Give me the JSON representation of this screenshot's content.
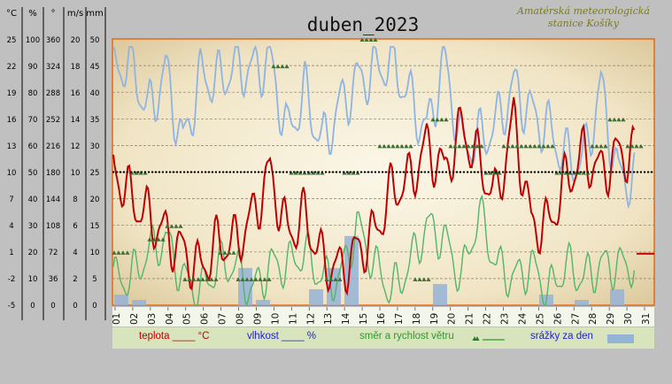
{
  "title": "duben_2023",
  "station": [
    "Amatérská meteorologická",
    "stanice Košíky"
  ],
  "chart_data": {
    "type": "line",
    "title": "duben_2023",
    "axes": [
      {
        "unit": "°C",
        "ticks": [
          "25",
          "22",
          "19",
          "16",
          "13",
          "10",
          "7",
          "4",
          "1",
          "-2",
          "-5"
        ]
      },
      {
        "unit": "%",
        "ticks": [
          "100",
          "90",
          "80",
          "70",
          "60",
          "50",
          "40",
          "30",
          "20",
          "10",
          "0"
        ]
      },
      {
        "unit": "°",
        "ticks": [
          "360",
          "324",
          "288",
          "252",
          "216",
          "180",
          "144",
          "108",
          "72",
          "36",
          "0"
        ]
      },
      {
        "unit": "m/s",
        "ticks": [
          "20",
          "18",
          "16",
          "14",
          "12",
          "10",
          "8",
          "6",
          "4",
          "2",
          "0"
        ]
      },
      {
        "unit": "mm",
        "ticks": [
          "50",
          "45",
          "40",
          "35",
          "30",
          "25",
          "20",
          "15",
          "10",
          "5",
          "0"
        ]
      }
    ],
    "x_ticks": [
      "01",
      "02",
      "03",
      "04",
      "05",
      "06",
      "07",
      "08",
      "09",
      "10",
      "11",
      "12",
      "13",
      "14",
      "15",
      "16",
      "17",
      "18",
      "19",
      "20",
      "21",
      "22",
      "23",
      "24",
      "25",
      "26",
      "27",
      "28",
      "29",
      "30",
      "31"
    ],
    "series": [
      {
        "name": "teplota",
        "unit": "°C",
        "color": "#c00000",
        "values": [
          10.5,
          7,
          5,
          3,
          1,
          -1,
          2,
          2,
          5,
          10,
          3,
          5,
          0,
          -1,
          1,
          3,
          8,
          9,
          13,
          10,
          15,
          11,
          7,
          16,
          4,
          4,
          9,
          12,
          10,
          12
        ]
      },
      {
        "name": "vlhkost",
        "unit": "%",
        "color": "#8eb4e3",
        "values": [
          88,
          92,
          72,
          88,
          60,
          86,
          84,
          90,
          88,
          92,
          64,
          80,
          60,
          75,
          84,
          88,
          92,
          78,
          65,
          92,
          60,
          62,
          68,
          82,
          72,
          66,
          55,
          54,
          82,
          48
        ]
      },
      {
        "name": "směr a rychlost větru",
        "unit": "m/s",
        "color": "#52b567",
        "values": [
          2,
          2,
          4,
          5,
          2,
          1,
          3,
          3,
          1,
          3,
          3,
          4,
          2,
          2,
          6,
          3,
          1,
          3,
          6,
          5,
          2,
          7,
          3,
          2,
          3,
          1,
          3,
          2,
          3,
          3
        ]
      },
      {
        "name": "směr větru",
        "unit": "°",
        "color": "#3f6e34",
        "values": [
          72,
          180,
          90,
          108,
          36,
          36,
          72,
          36,
          36,
          324,
          180,
          180,
          36,
          180,
          360,
          216,
          216,
          36,
          252,
          216,
          216,
          180,
          216,
          216,
          216,
          180,
          180,
          216,
          252,
          216
        ]
      },
      {
        "name": "srážky za den",
        "unit": "mm",
        "color": "#95b3d7",
        "values": [
          2,
          1,
          0,
          0,
          0,
          0,
          0,
          7,
          1,
          0,
          0,
          3,
          7,
          13,
          0,
          0,
          0,
          0,
          4,
          0,
          0,
          0,
          0,
          0,
          2,
          0,
          1,
          0,
          3,
          0
        ]
      }
    ],
    "reference_line": {
      "unit": "°C",
      "value": 10
    }
  },
  "legend": [
    {
      "label": "teplota ____ °C",
      "color": "#c00000"
    },
    {
      "label": "vlhkost ____ %",
      "color": "#1f1fd0"
    },
    {
      "label": "směr a rychlost větru",
      "color": "#2b9b2b"
    },
    {
      "label": "srážky za den",
      "color": "#1f1fd0"
    }
  ],
  "colors": {
    "background": "#c0c0c0",
    "plot_fill": "#f4ecd2",
    "plot_border": "#e06b1a",
    "legend_bg": "#d8e4bc",
    "wind_markers": "#3f6e34",
    "rain_bars": "#95b3d7"
  }
}
